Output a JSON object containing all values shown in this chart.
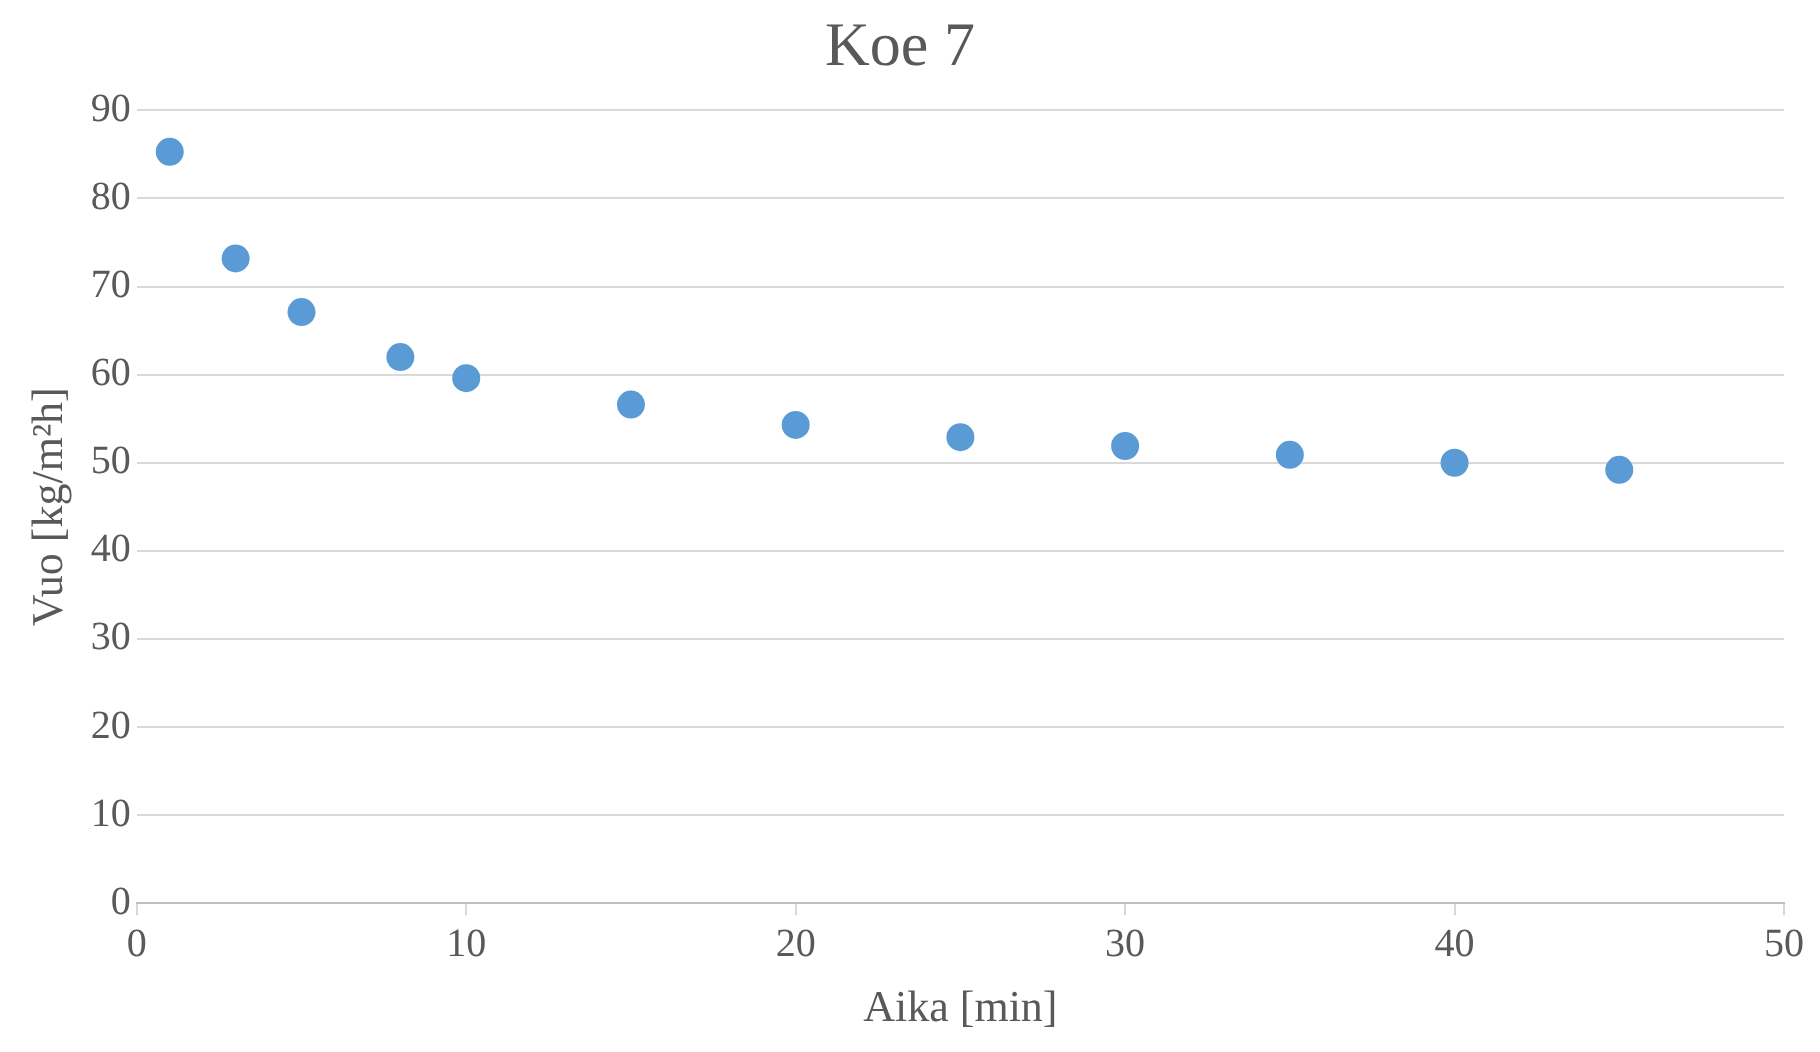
{
  "chart_data": {
    "type": "scatter",
    "title": "Koe 7",
    "xlabel": "Aika [min]",
    "ylabel": "Vuo [kg/m²h]",
    "x": [
      1,
      3,
      5,
      8,
      10,
      15,
      20,
      25,
      30,
      35,
      40,
      45
    ],
    "series": [
      {
        "color": "#5b9bd5",
        "values": [
          85.3,
          73.2,
          67.1,
          62.0,
          59.6,
          56.6,
          54.3,
          52.9,
          51.9,
          50.9,
          50.0,
          49.2
        ]
      }
    ],
    "xlim": [
      0,
      50
    ],
    "xticks": [
      0,
      10,
      20,
      30,
      40,
      50
    ],
    "ylim": [
      0,
      90
    ],
    "yticks": [
      0,
      10,
      20,
      30,
      40,
      50,
      60,
      70,
      80,
      90
    ],
    "grid": "y",
    "legend": false,
    "marker": "circle"
  }
}
